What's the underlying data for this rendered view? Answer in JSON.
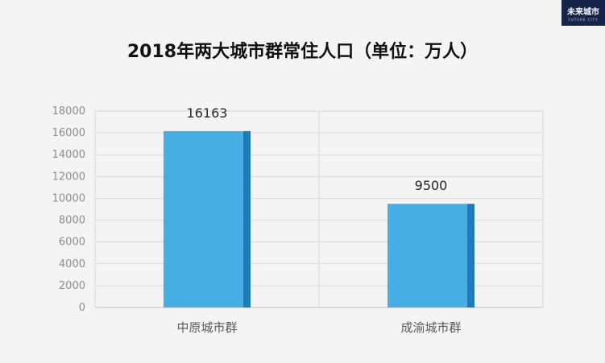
{
  "logo": {
    "text": "未来城市",
    "subtext": "FUTURE CITY"
  },
  "chart_data": {
    "type": "bar",
    "title": "2018年两大城市群常住人口（单位：万人）",
    "categories": [
      "中原城市群",
      "成渝城市群"
    ],
    "values": [
      16163,
      9500
    ],
    "data_labels": [
      "16163",
      "9500"
    ],
    "ylim": [
      0,
      18000
    ],
    "yticks": [
      0,
      2000,
      4000,
      6000,
      8000,
      10000,
      12000,
      14000,
      16000,
      18000
    ],
    "xlabel": "",
    "ylabel": "",
    "grid": true,
    "legend": "none",
    "colors": {
      "bar": "#47aee3",
      "bar_side": "#1f7ab8",
      "grid": "#d9d9d9",
      "axis": "#bfbfbf"
    }
  }
}
